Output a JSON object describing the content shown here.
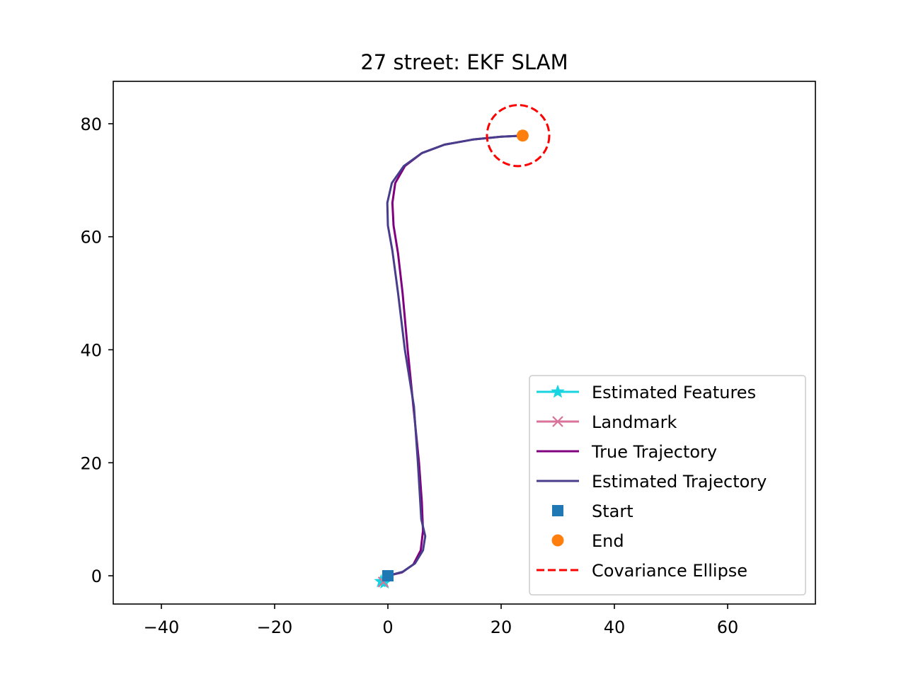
{
  "chart_data": {
    "type": "line",
    "title": "27 street: EKF SLAM",
    "xlabel": "",
    "ylabel": "",
    "xlim": [
      -48.5,
      75.5
    ],
    "ylim": [
      -5,
      87.5
    ],
    "x_ticks": [
      -40,
      -20,
      0,
      20,
      40,
      60
    ],
    "x_tick_labels": [
      "−40",
      "−20",
      "0",
      "20",
      "40",
      "60"
    ],
    "y_ticks": [
      0,
      20,
      40,
      60,
      80
    ],
    "y_tick_labels": [
      "0",
      "20",
      "40",
      "60",
      "80"
    ],
    "grid": false,
    "legend_position": "lower right",
    "series": [
      {
        "name": "Estimated Features",
        "kind": "line-marker",
        "marker": "star",
        "color": "#17d4e0",
        "x": [
          -1.2,
          -0.6
        ],
        "y": [
          -1.0,
          -1.2
        ]
      },
      {
        "name": "Landmark",
        "kind": "line-marker",
        "marker": "x",
        "color": "#d9739a",
        "x": [
          -0.8
        ],
        "y": [
          -1.1
        ]
      },
      {
        "name": "True Trajectory",
        "kind": "line",
        "color": "#800080",
        "x": [
          0,
          2.5,
          4.5,
          5.8,
          6.2,
          6.0,
          5.5,
          4.5,
          3.5,
          2.6,
          1.8,
          1.0,
          0.8,
          1.3,
          3.0,
          6.0,
          10.0,
          15.0,
          20.0,
          24.0
        ],
        "y": [
          0,
          0.6,
          2.0,
          4.5,
          8.0,
          13.0,
          20.0,
          30.0,
          40.0,
          50.0,
          57.0,
          62.0,
          66.0,
          69.5,
          72.5,
          74.8,
          76.3,
          77.2,
          77.7,
          77.9
        ]
      },
      {
        "name": "Estimated Trajectory",
        "kind": "line",
        "color": "#483d8b",
        "x": [
          0,
          2.6,
          4.8,
          6.2,
          6.6,
          5.9,
          5.3,
          4.6,
          3.0,
          1.8,
          0.8,
          0.0,
          -0.1,
          0.7,
          2.8,
          6.0,
          10.0,
          15.0,
          20.0,
          24.0
        ],
        "y": [
          0,
          0.7,
          2.2,
          4.5,
          7.0,
          10.0,
          20.0,
          30.0,
          40.0,
          50.0,
          57.5,
          62.0,
          66.0,
          69.5,
          72.5,
          74.8,
          76.3,
          77.2,
          77.7,
          77.9
        ]
      },
      {
        "name": "Start",
        "kind": "scatter",
        "marker": "square",
        "color": "#1f77b4",
        "x": [
          0
        ],
        "y": [
          0
        ]
      },
      {
        "name": "End",
        "kind": "scatter",
        "marker": "circle",
        "color": "#ff7f0e",
        "x": [
          23.8
        ],
        "y": [
          77.9
        ]
      },
      {
        "name": "Covariance Ellipse",
        "kind": "ellipse",
        "linestyle": "dashed",
        "color": "#ff0000",
        "cx": 23.0,
        "cy": 77.9,
        "rx": 5.5,
        "ry": 5.4
      }
    ]
  }
}
